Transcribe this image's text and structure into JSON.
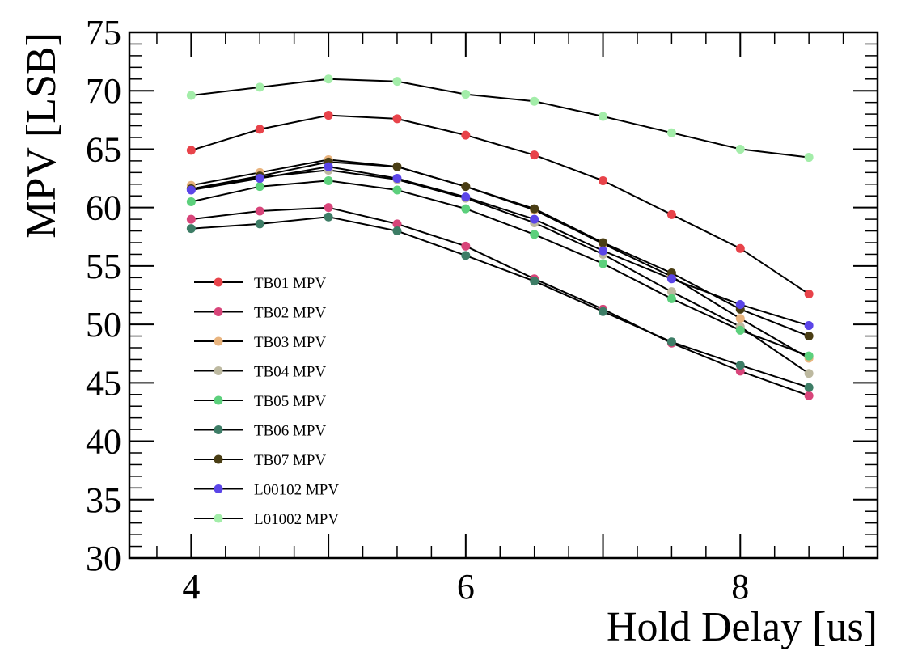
{
  "chart_data": {
    "type": "line",
    "title": "",
    "xlabel": "Hold Delay [us]",
    "ylabel": "MPV [LSB]",
    "xlim": [
      3.55,
      9.0
    ],
    "ylim": [
      30,
      75
    ],
    "xticks": [
      4,
      6,
      8
    ],
    "yticks": [
      30,
      35,
      40,
      45,
      50,
      55,
      60,
      65,
      70,
      75
    ],
    "grid": false,
    "legend_position": "left-middle",
    "x": [
      4,
      4.5,
      5,
      5.5,
      6,
      6.5,
      7,
      7.5,
      8,
      8.5
    ],
    "series": [
      {
        "name": "TB01 MPV",
        "color": "#e8434a",
        "values": [
          64.9,
          66.7,
          67.9,
          67.6,
          66.2,
          64.5,
          62.3,
          59.4,
          56.5,
          52.6
        ]
      },
      {
        "name": "TB02 MPV",
        "color": "#d8457a",
        "values": [
          59.0,
          59.7,
          60.0,
          58.6,
          56.7,
          53.9,
          51.3,
          48.4,
          46.0,
          43.9
        ]
      },
      {
        "name": "TB03 MPV",
        "color": "#e9b47e",
        "values": [
          61.9,
          63.0,
          64.1,
          63.5,
          61.8,
          59.8,
          56.9,
          54.1,
          50.5,
          47.1
        ]
      },
      {
        "name": "TB04 MPV",
        "color": "#bdb9a0",
        "values": [
          61.6,
          62.6,
          63.2,
          62.4,
          60.8,
          58.7,
          56.0,
          52.8,
          49.8,
          45.8
        ]
      },
      {
        "name": "TB05 MPV",
        "color": "#5cd07c",
        "values": [
          60.5,
          61.8,
          62.3,
          61.5,
          59.9,
          57.7,
          55.2,
          52.2,
          49.5,
          47.3
        ]
      },
      {
        "name": "TB06 MPV",
        "color": "#3d7d66",
        "values": [
          58.2,
          58.6,
          59.2,
          58.0,
          55.9,
          53.7,
          51.1,
          48.5,
          46.5,
          44.6
        ]
      },
      {
        "name": "TB07 MPV",
        "color": "#4a3e14",
        "values": [
          61.6,
          62.7,
          63.9,
          63.5,
          61.8,
          59.9,
          57.0,
          54.4,
          51.3,
          49.0
        ]
      },
      {
        "name": "L00102 MPV",
        "color": "#5b45e8",
        "values": [
          61.5,
          62.5,
          63.5,
          62.5,
          60.9,
          59.0,
          56.3,
          53.9,
          51.7,
          49.9
        ]
      },
      {
        "name": "L01002 MPV",
        "color": "#a3eda9",
        "values": [
          69.6,
          70.3,
          71.0,
          70.8,
          69.7,
          69.1,
          67.8,
          66.4,
          65.0,
          64.3
        ]
      }
    ]
  }
}
